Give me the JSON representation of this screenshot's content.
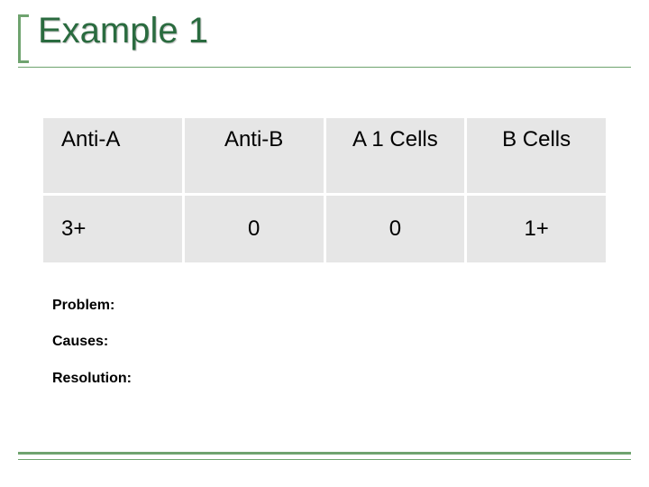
{
  "title": {
    "text": "Example 1",
    "color": "#2a6b3f",
    "accent_border_color": "#6fa36f",
    "underline_color": "#6fa36f"
  },
  "table": {
    "header_bg": "#e6e6e6",
    "cell_bg": "#e6e6e6",
    "border_color": "#ffffff",
    "columns": [
      "Anti-A",
      "Anti-B",
      "A 1 Cells",
      "B Cells"
    ],
    "rows": [
      [
        "3+",
        "0",
        "0",
        "1+"
      ]
    ]
  },
  "notes": {
    "problem_label": "Problem:",
    "causes_label": "Causes:",
    "resolution_label": "Resolution:"
  },
  "footer": {
    "rule_color": "#6fa36f"
  }
}
